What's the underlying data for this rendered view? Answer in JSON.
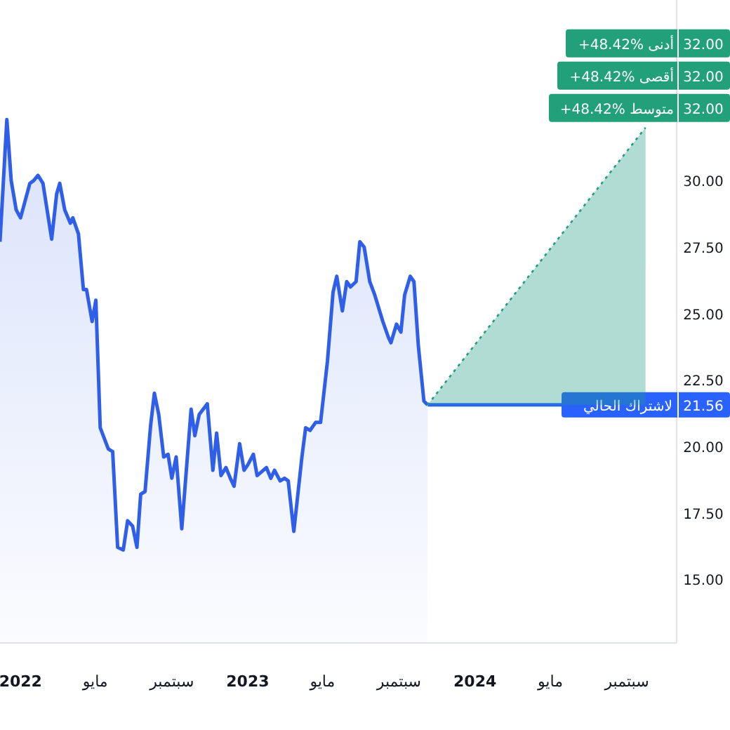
{
  "chart_data": {
    "type": "area",
    "series": [
      {
        "color": "#2f5fe8",
        "x": [
          "2021-11-29",
          "2021-12-10",
          "2021-12-17",
          "2021-12-25",
          "2022-01-01",
          "2022-01-16",
          "2022-01-22",
          "2022-01-29",
          "2022-02-06",
          "2022-02-20",
          "2022-02-28",
          "2022-03-05",
          "2022-03-13",
          "2022-03-22",
          "2022-03-26",
          "2022-04-04",
          "2022-04-12",
          "2022-04-17",
          "2022-04-26",
          "2022-05-02",
          "2022-05-09",
          "2022-05-22",
          "2022-05-29",
          "2022-06-06",
          "2022-06-15",
          "2022-06-22",
          "2022-06-30",
          "2022-07-07",
          "2022-07-13",
          "2022-07-20",
          "2022-07-29",
          "2022-08-04",
          "2022-08-11",
          "2022-08-19",
          "2022-08-26",
          "2022-09-01",
          "2022-09-08",
          "2022-09-17",
          "2022-10-02",
          "2022-10-08",
          "2022-10-15",
          "2022-10-28",
          "2022-11-06",
          "2022-11-12",
          "2022-11-19",
          "2022-11-27",
          "2022-12-04",
          "2022-12-10",
          "2022-12-19",
          "2022-12-26",
          "2023-01-01",
          "2023-01-10",
          "2023-01-16",
          "2023-01-31",
          "2023-02-07",
          "2023-02-13",
          "2023-02-22",
          "2023-03-01",
          "2023-03-07",
          "2023-03-16",
          "2023-03-29",
          "2023-04-04",
          "2023-04-11",
          "2023-04-20",
          "2023-04-28",
          "2023-05-09",
          "2023-05-18",
          "2023-05-24",
          "2023-06-02",
          "2023-06-09",
          "2023-06-15",
          "2023-06-24",
          "2023-06-30",
          "2023-07-07",
          "2023-07-16",
          "2023-07-24",
          "2023-08-06",
          "2023-08-15",
          "2023-08-19",
          "2023-08-28",
          "2023-09-04",
          "2023-09-10",
          "2023-09-19",
          "2023-09-25",
          "2023-10-02",
          "2023-10-11",
          "2023-10-17"
        ],
        "values": [
          27.7,
          32.3,
          30.0,
          28.9,
          28.6,
          29.9,
          30.0,
          30.2,
          29.9,
          27.8,
          29.5,
          29.9,
          28.9,
          28.4,
          28.6,
          28.0,
          25.9,
          25.9,
          24.7,
          25.5,
          20.7,
          19.9,
          19.8,
          16.2,
          16.1,
          17.2,
          17.0,
          16.2,
          18.2,
          18.3,
          20.8,
          22.0,
          21.2,
          19.6,
          19.7,
          18.8,
          19.6,
          16.9,
          21.4,
          20.4,
          21.2,
          21.6,
          19.1,
          20.5,
          18.9,
          19.2,
          18.8,
          18.5,
          20.1,
          19.1,
          19.3,
          19.7,
          18.9,
          19.2,
          18.8,
          19.1,
          18.7,
          18.8,
          18.7,
          16.8,
          19.6,
          20.7,
          20.6,
          20.9,
          20.9,
          23.2,
          25.8,
          26.4,
          25.1,
          26.2,
          26.0,
          26.2,
          27.7,
          27.5,
          26.2,
          25.7,
          24.7,
          24.1,
          23.9,
          24.6,
          24.3,
          25.7,
          26.4,
          26.2,
          23.8,
          21.7,
          21.56
        ]
      },
      {
        "type": "line",
        "line_style": "dotted",
        "color": "#1f9c82",
        "x": [
          "2023-10-17",
          "2024-10-01"
        ],
        "values": [
          21.56,
          32
        ],
        "lower": [
          21.56,
          21.56
        ],
        "upper": [
          21.56,
          32
        ]
      }
    ],
    "xlim": [
      "2021-11-29",
      "2024-11-20"
    ],
    "xticks": [
      {
        "value": "2022-01-01",
        "label": "2022"
      },
      {
        "value": "2022-05-01",
        "label": "مايو"
      },
      {
        "value": "2022-09-01",
        "label": "سبتمبر"
      },
      {
        "value": "2023-01-01",
        "label": "2023"
      },
      {
        "value": "2023-05-01",
        "label": "مايو"
      },
      {
        "value": "2023-09-01",
        "label": "سبتمبر"
      },
      {
        "value": "2024-01-01",
        "label": "2024"
      },
      {
        "value": "2024-05-01",
        "label": "مايو"
      },
      {
        "value": "2024-09-01",
        "label": "سبتمبر"
      }
    ],
    "ylim": [
      12.6,
      36.8
    ],
    "yticks": [
      {
        "value": 15,
        "label": "15.00"
      },
      {
        "value": 17.5,
        "label": "17.50"
      },
      {
        "value": 20,
        "label": "20.00"
      },
      {
        "value": 22.5,
        "label": "22.50"
      },
      {
        "value": 25,
        "label": "25.00"
      },
      {
        "value": 27.5,
        "label": "27.50"
      },
      {
        "value": 30,
        "label": "30.00"
      }
    ],
    "ref_lines": [
      {
        "axis": "y",
        "value": 21.56,
        "label": "لاشتراك الحالي",
        "color": "#2962ff"
      }
    ],
    "annotations": [
      "+48.42% أدنى",
      "32.00",
      "+48.42% أقصى",
      "32.00",
      "+48.42% متوسط",
      "32.00",
      "21.56"
    ]
  }
}
